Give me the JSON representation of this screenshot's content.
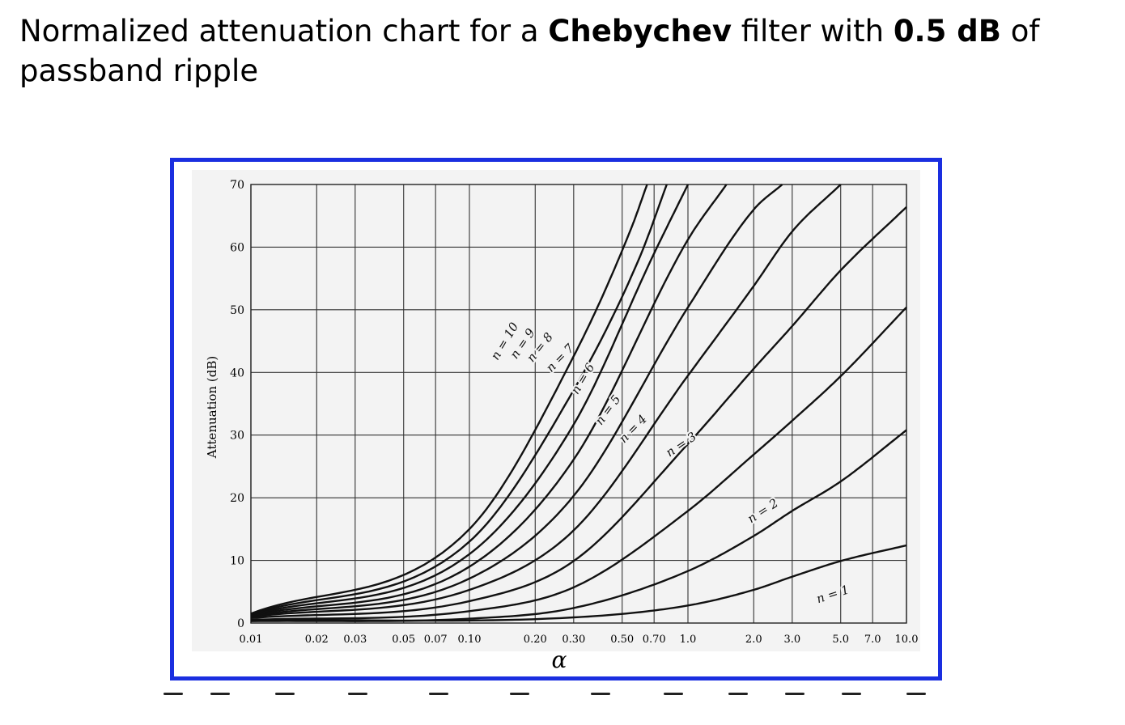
{
  "title": {
    "t1": "Normalized attenuation chart for a ",
    "b1": "Chebychev",
    "t2": "  filter with ",
    "b2": "0.5 dB",
    "t3": " of passband ripple"
  },
  "chart_data": {
    "type": "line",
    "xscale": "log",
    "xlim": [
      0.01,
      10.0
    ],
    "ylim": [
      0,
      70
    ],
    "xlabel": "α",
    "ylabel": "Attenuation (dB)",
    "x_ticks": [
      "0.01",
      "0.02",
      "0.03",
      "0.05",
      "0.07",
      "0.10",
      "0.20",
      "0.30",
      "0.50",
      "0.70",
      "1.0",
      "2.0",
      "3.0",
      "5.0",
      "7.0",
      "10.0"
    ],
    "y_ticks": [
      "0",
      "10",
      "20",
      "30",
      "40",
      "50",
      "60",
      "70"
    ],
    "grid": true,
    "ripple_db": 0.5,
    "series": [
      {
        "name": "n = 1",
        "x": [
          0.01,
          0.3,
          1.0,
          2.0,
          3.0,
          5.0,
          10.0
        ],
        "y": [
          0.5,
          0.9,
          2.8,
          5.3,
          7.4,
          9.9,
          12.4
        ]
      },
      {
        "name": "n = 2",
        "x": [
          0.01,
          0.1,
          0.3,
          1.0,
          2.0,
          3.0,
          5.0,
          10.0
        ],
        "y": [
          0.3,
          0.7,
          2.4,
          8.3,
          13.9,
          17.9,
          22.6,
          30.8
        ]
      },
      {
        "name": "n = 3",
        "x": [
          0.01,
          0.1,
          0.3,
          1.0,
          2.0,
          3.0,
          5.0,
          10.0
        ],
        "y": [
          0.5,
          1.9,
          5.7,
          17.9,
          26.9,
          32.3,
          39.4,
          50.4
        ]
      },
      {
        "name": "n = 4",
        "x": [
          0.01,
          0.1,
          0.3,
          1.0,
          2.0,
          3.0,
          5.0,
          10.0
        ],
        "y": [
          0.8,
          3.5,
          9.9,
          28.6,
          40.6,
          47.4,
          56.3,
          66.4
        ]
      },
      {
        "name": "n = 5",
        "x": [
          0.01,
          0.1,
          0.3,
          1.0,
          2.0,
          3.0,
          5.0
        ],
        "y": [
          1.0,
          5.3,
          14.8,
          39.5,
          53.8,
          62.5,
          70
        ]
      },
      {
        "name": "n = 6",
        "x": [
          0.01,
          0.1,
          0.3,
          1.0,
          2.0,
          2.7
        ],
        "y": [
          1.1,
          7.1,
          20.3,
          50.4,
          66.0,
          70
        ]
      },
      {
        "name": "n = 7",
        "x": [
          0.01,
          0.1,
          0.3,
          1.0,
          1.5
        ],
        "y": [
          1.2,
          9.0,
          26.1,
          61.2,
          70
        ]
      },
      {
        "name": "n = 8",
        "x": [
          0.01,
          0.1,
          0.3,
          0.7,
          1.0
        ],
        "y": [
          1.3,
          11.0,
          31.7,
          59.0,
          70
        ]
      },
      {
        "name": "n = 9",
        "x": [
          0.01,
          0.1,
          0.3,
          0.6,
          0.8
        ],
        "y": [
          1.4,
          13.0,
          37.2,
          58.3,
          70
        ]
      },
      {
        "name": "n = 10",
        "x": [
          0.01,
          0.1,
          0.3,
          0.55,
          0.65
        ],
        "y": [
          1.5,
          15.0,
          42.6,
          63.0,
          70
        ]
      }
    ],
    "curve_labels": [
      {
        "name": "n = 1",
        "x": 4.6,
        "y": 4.6
      },
      {
        "name": "n = 2",
        "x": 2.2,
        "y": 17.9
      },
      {
        "name": "n = 3",
        "x": 0.93,
        "y": 28.5
      },
      {
        "name": "n = 4",
        "x": 0.56,
        "y": 31.0
      },
      {
        "name": "n = 5",
        "x": 0.43,
        "y": 34.0
      },
      {
        "name": "n = 6",
        "x": 0.33,
        "y": 39.0
      },
      {
        "name": "n = 7",
        "x": 0.26,
        "y": 42.3
      },
      {
        "name": "n = 8",
        "x": 0.21,
        "y": 44.0
      },
      {
        "name": "n = 9",
        "x": 0.175,
        "y": 44.6
      },
      {
        "name": "n = 10",
        "x": 0.145,
        "y": 45.0
      }
    ]
  }
}
